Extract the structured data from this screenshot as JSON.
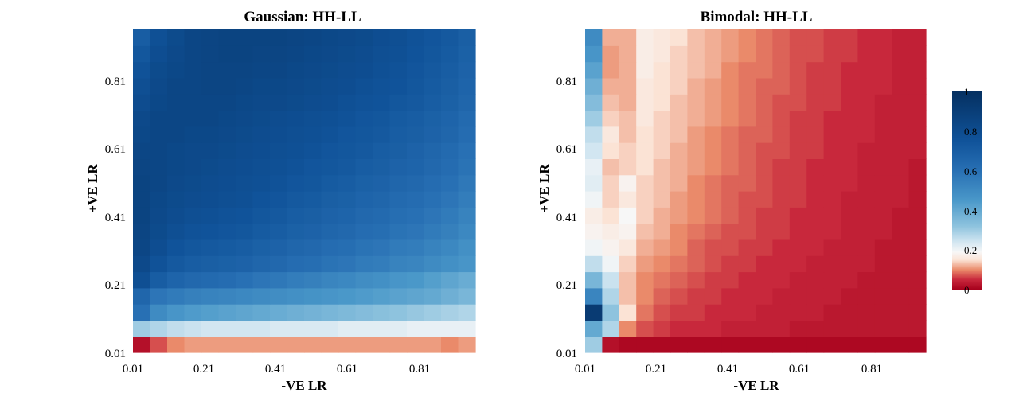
{
  "chart_data": [
    {
      "type": "heatmap",
      "title": "Gaussian: HH-LL",
      "xlabel": "-VE LR",
      "ylabel": "+VE LR",
      "xticks": [
        "0.01",
        "0.21",
        "0.41",
        "0.61",
        "0.81"
      ],
      "yticks": [
        "0.01",
        "0.21",
        "0.41",
        "0.61",
        "0.81"
      ],
      "x_range": [
        0.01,
        0.96
      ],
      "y_range": [
        0.01,
        0.96
      ],
      "grid_size": [
        20,
        20
      ],
      "rows_bottom_to_top": [
        [
          0.02,
          0.07,
          0.1,
          0.11,
          0.11,
          0.11,
          0.11,
          0.11,
          0.11,
          0.11,
          0.11,
          0.11,
          0.11,
          0.11,
          0.11,
          0.11,
          0.11,
          0.11,
          0.1,
          0.11
        ],
        [
          0.3,
          0.28,
          0.26,
          0.25,
          0.24,
          0.24,
          0.24,
          0.24,
          0.23,
          0.23,
          0.23,
          0.23,
          0.22,
          0.22,
          0.22,
          0.22,
          0.21,
          0.21,
          0.21,
          0.21
        ],
        [
          0.6,
          0.5,
          0.46,
          0.44,
          0.43,
          0.42,
          0.41,
          0.4,
          0.39,
          0.38,
          0.37,
          0.36,
          0.35,
          0.34,
          0.33,
          0.32,
          0.31,
          0.3,
          0.29,
          0.28
        ],
        [
          0.65,
          0.58,
          0.56,
          0.54,
          0.53,
          0.52,
          0.51,
          0.5,
          0.49,
          0.48,
          0.47,
          0.46,
          0.45,
          0.44,
          0.43,
          0.42,
          0.41,
          0.4,
          0.38,
          0.36
        ],
        [
          0.78,
          0.7,
          0.66,
          0.64,
          0.63,
          0.62,
          0.6,
          0.58,
          0.57,
          0.55,
          0.54,
          0.52,
          0.51,
          0.49,
          0.48,
          0.46,
          0.45,
          0.43,
          0.41,
          0.39
        ],
        [
          0.82,
          0.76,
          0.72,
          0.7,
          0.69,
          0.68,
          0.67,
          0.65,
          0.64,
          0.62,
          0.61,
          0.59,
          0.58,
          0.56,
          0.55,
          0.53,
          0.52,
          0.5,
          0.48,
          0.46
        ],
        [
          0.84,
          0.79,
          0.75,
          0.73,
          0.72,
          0.71,
          0.7,
          0.68,
          0.67,
          0.65,
          0.64,
          0.62,
          0.61,
          0.59,
          0.58,
          0.56,
          0.55,
          0.53,
          0.51,
          0.48
        ],
        [
          0.85,
          0.81,
          0.78,
          0.76,
          0.75,
          0.74,
          0.73,
          0.71,
          0.7,
          0.68,
          0.67,
          0.65,
          0.64,
          0.62,
          0.61,
          0.59,
          0.58,
          0.56,
          0.54,
          0.51
        ],
        [
          0.86,
          0.82,
          0.8,
          0.78,
          0.77,
          0.76,
          0.75,
          0.73,
          0.72,
          0.7,
          0.69,
          0.67,
          0.66,
          0.64,
          0.63,
          0.61,
          0.6,
          0.58,
          0.56,
          0.53
        ],
        [
          0.86,
          0.83,
          0.81,
          0.8,
          0.79,
          0.78,
          0.77,
          0.75,
          0.74,
          0.72,
          0.71,
          0.69,
          0.68,
          0.66,
          0.65,
          0.63,
          0.62,
          0.6,
          0.58,
          0.55
        ],
        [
          0.86,
          0.84,
          0.82,
          0.81,
          0.8,
          0.79,
          0.78,
          0.77,
          0.76,
          0.74,
          0.73,
          0.71,
          0.7,
          0.68,
          0.67,
          0.65,
          0.64,
          0.62,
          0.6,
          0.57
        ],
        [
          0.85,
          0.84,
          0.83,
          0.82,
          0.81,
          0.8,
          0.79,
          0.78,
          0.77,
          0.76,
          0.74,
          0.73,
          0.72,
          0.7,
          0.69,
          0.67,
          0.66,
          0.64,
          0.62,
          0.59
        ],
        [
          0.84,
          0.84,
          0.83,
          0.82,
          0.82,
          0.81,
          0.8,
          0.79,
          0.78,
          0.77,
          0.76,
          0.74,
          0.73,
          0.72,
          0.7,
          0.69,
          0.67,
          0.65,
          0.63,
          0.6
        ],
        [
          0.83,
          0.84,
          0.84,
          0.83,
          0.83,
          0.82,
          0.81,
          0.8,
          0.79,
          0.78,
          0.77,
          0.76,
          0.74,
          0.73,
          0.72,
          0.7,
          0.69,
          0.67,
          0.65,
          0.62
        ],
        [
          0.82,
          0.84,
          0.84,
          0.84,
          0.84,
          0.83,
          0.82,
          0.81,
          0.8,
          0.79,
          0.78,
          0.77,
          0.76,
          0.74,
          0.73,
          0.71,
          0.7,
          0.68,
          0.66,
          0.63
        ],
        [
          0.8,
          0.83,
          0.84,
          0.84,
          0.84,
          0.84,
          0.83,
          0.82,
          0.82,
          0.81,
          0.8,
          0.79,
          0.77,
          0.76,
          0.75,
          0.73,
          0.72,
          0.7,
          0.68,
          0.65
        ],
        [
          0.78,
          0.82,
          0.84,
          0.84,
          0.85,
          0.85,
          0.84,
          0.83,
          0.83,
          0.82,
          0.81,
          0.8,
          0.79,
          0.77,
          0.76,
          0.75,
          0.73,
          0.71,
          0.69,
          0.66
        ],
        [
          0.76,
          0.81,
          0.83,
          0.84,
          0.85,
          0.85,
          0.85,
          0.84,
          0.84,
          0.83,
          0.82,
          0.81,
          0.8,
          0.79,
          0.77,
          0.76,
          0.74,
          0.72,
          0.7,
          0.67
        ],
        [
          0.73,
          0.79,
          0.82,
          0.84,
          0.85,
          0.86,
          0.86,
          0.85,
          0.85,
          0.84,
          0.83,
          0.82,
          0.81,
          0.8,
          0.78,
          0.77,
          0.75,
          0.73,
          0.71,
          0.68
        ],
        [
          0.7,
          0.77,
          0.81,
          0.84,
          0.85,
          0.86,
          0.86,
          0.86,
          0.86,
          0.85,
          0.84,
          0.83,
          0.82,
          0.81,
          0.79,
          0.78,
          0.76,
          0.74,
          0.72,
          0.69
        ]
      ]
    },
    {
      "type": "heatmap",
      "title": "Bimodal: HH-LL",
      "xlabel": "-VE LR",
      "ylabel": "+VE LR",
      "xticks": [
        "0.01",
        "0.21",
        "0.41",
        "0.61",
        "0.81"
      ],
      "yticks": [
        "0.01",
        "0.21",
        "0.41",
        "0.61",
        "0.81"
      ],
      "x_range": [
        0.01,
        0.96
      ],
      "y_range": [
        0.01,
        0.96
      ],
      "grid_size": [
        20,
        20
      ],
      "rows_bottom_to_top": [
        [
          0.3,
          0.02,
          0.01,
          0.01,
          0.01,
          0.01,
          0.01,
          0.01,
          0.01,
          0.01,
          0.01,
          0.01,
          0.01,
          0.01,
          0.01,
          0.01,
          0.01,
          0.01,
          0.01,
          0.01
        ],
        [
          0.4,
          0.28,
          0.1,
          0.07,
          0.06,
          0.05,
          0.05,
          0.05,
          0.04,
          0.04,
          0.04,
          0.04,
          0.03,
          0.03,
          0.03,
          0.03,
          0.03,
          0.03,
          0.03,
          0.03
        ],
        [
          0.92,
          0.32,
          0.15,
          0.09,
          0.07,
          0.06,
          0.06,
          0.05,
          0.05,
          0.05,
          0.04,
          0.04,
          0.04,
          0.04,
          0.03,
          0.03,
          0.03,
          0.03,
          0.03,
          0.03
        ],
        [
          0.52,
          0.28,
          0.13,
          0.1,
          0.08,
          0.07,
          0.06,
          0.06,
          0.05,
          0.05,
          0.05,
          0.04,
          0.04,
          0.04,
          0.04,
          0.03,
          0.03,
          0.03,
          0.03,
          0.03
        ],
        [
          0.36,
          0.25,
          0.13,
          0.1,
          0.09,
          0.08,
          0.07,
          0.06,
          0.06,
          0.05,
          0.05,
          0.05,
          0.04,
          0.04,
          0.04,
          0.04,
          0.03,
          0.03,
          0.03,
          0.03
        ],
        [
          0.26,
          0.2,
          0.14,
          0.11,
          0.1,
          0.09,
          0.08,
          0.07,
          0.06,
          0.06,
          0.05,
          0.05,
          0.05,
          0.04,
          0.04,
          0.04,
          0.04,
          0.03,
          0.03,
          0.03
        ],
        [
          0.2,
          0.18,
          0.16,
          0.12,
          0.11,
          0.1,
          0.08,
          0.07,
          0.07,
          0.06,
          0.06,
          0.05,
          0.05,
          0.05,
          0.04,
          0.04,
          0.04,
          0.03,
          0.03,
          0.03
        ],
        [
          0.18,
          0.17,
          0.18,
          0.13,
          0.12,
          0.1,
          0.09,
          0.08,
          0.07,
          0.07,
          0.06,
          0.06,
          0.05,
          0.05,
          0.05,
          0.04,
          0.04,
          0.04,
          0.03,
          0.03
        ],
        [
          0.17,
          0.15,
          0.19,
          0.14,
          0.12,
          0.11,
          0.1,
          0.09,
          0.08,
          0.07,
          0.06,
          0.06,
          0.05,
          0.05,
          0.05,
          0.04,
          0.04,
          0.04,
          0.03,
          0.03
        ],
        [
          0.2,
          0.14,
          0.16,
          0.14,
          0.13,
          0.11,
          0.1,
          0.09,
          0.08,
          0.07,
          0.07,
          0.06,
          0.06,
          0.05,
          0.05,
          0.04,
          0.04,
          0.04,
          0.04,
          0.03
        ],
        [
          0.22,
          0.14,
          0.18,
          0.14,
          0.13,
          0.12,
          0.1,
          0.09,
          0.08,
          0.08,
          0.07,
          0.06,
          0.06,
          0.05,
          0.05,
          0.05,
          0.04,
          0.04,
          0.04,
          0.03
        ],
        [
          0.21,
          0.13,
          0.14,
          0.15,
          0.13,
          0.12,
          0.11,
          0.1,
          0.09,
          0.08,
          0.07,
          0.06,
          0.06,
          0.05,
          0.05,
          0.05,
          0.04,
          0.04,
          0.04,
          0.03
        ],
        [
          0.24,
          0.15,
          0.14,
          0.15,
          0.14,
          0.12,
          0.11,
          0.1,
          0.09,
          0.08,
          0.07,
          0.07,
          0.06,
          0.06,
          0.05,
          0.05,
          0.04,
          0.04,
          0.04,
          0.04
        ],
        [
          0.26,
          0.16,
          0.13,
          0.15,
          0.14,
          0.13,
          0.11,
          0.1,
          0.09,
          0.08,
          0.08,
          0.07,
          0.06,
          0.06,
          0.05,
          0.05,
          0.05,
          0.04,
          0.04,
          0.04
        ],
        [
          0.3,
          0.14,
          0.13,
          0.16,
          0.14,
          0.13,
          0.12,
          0.11,
          0.1,
          0.09,
          0.08,
          0.07,
          0.06,
          0.06,
          0.05,
          0.05,
          0.05,
          0.04,
          0.04,
          0.04
        ],
        [
          0.34,
          0.13,
          0.12,
          0.16,
          0.15,
          0.13,
          0.12,
          0.11,
          0.1,
          0.09,
          0.08,
          0.07,
          0.07,
          0.06,
          0.06,
          0.05,
          0.05,
          0.04,
          0.04,
          0.04
        ],
        [
          0.38,
          0.12,
          0.12,
          0.16,
          0.15,
          0.14,
          0.12,
          0.11,
          0.1,
          0.09,
          0.08,
          0.08,
          0.07,
          0.06,
          0.06,
          0.05,
          0.05,
          0.05,
          0.04,
          0.04
        ],
        [
          0.42,
          0.11,
          0.12,
          0.17,
          0.15,
          0.14,
          0.13,
          0.12,
          0.1,
          0.09,
          0.09,
          0.08,
          0.07,
          0.06,
          0.06,
          0.05,
          0.05,
          0.05,
          0.04,
          0.04
        ],
        [
          0.46,
          0.11,
          0.12,
          0.17,
          0.16,
          0.14,
          0.13,
          0.12,
          0.11,
          0.1,
          0.09,
          0.08,
          0.07,
          0.07,
          0.06,
          0.06,
          0.05,
          0.05,
          0.04,
          0.04
        ],
        [
          0.5,
          0.12,
          0.12,
          0.17,
          0.16,
          0.15,
          0.13,
          0.12,
          0.11,
          0.1,
          0.09,
          0.08,
          0.07,
          0.07,
          0.06,
          0.06,
          0.05,
          0.05,
          0.04,
          0.04
        ]
      ]
    }
  ],
  "colorbar": {
    "ticks": [
      "1",
      "0.8",
      "0.6",
      "0.4",
      "0.2",
      "0"
    ],
    "range": [
      0,
      1
    ],
    "colormap_stops": [
      {
        "v": 0.0,
        "color": "#a6001c"
      },
      {
        "v": 0.05,
        "color": "#c8283c"
      },
      {
        "v": 0.1,
        "color": "#ea8a6a"
      },
      {
        "v": 0.15,
        "color": "#fbe3d5"
      },
      {
        "v": 0.19,
        "color": "#f7f7f7"
      },
      {
        "v": 0.24,
        "color": "#d2e6f1"
      },
      {
        "v": 0.32,
        "color": "#8ec3de"
      },
      {
        "v": 0.45,
        "color": "#4a98c9"
      },
      {
        "v": 0.6,
        "color": "#2870b4"
      },
      {
        "v": 0.75,
        "color": "#10539a"
      },
      {
        "v": 1.0,
        "color": "#053061"
      }
    ]
  }
}
